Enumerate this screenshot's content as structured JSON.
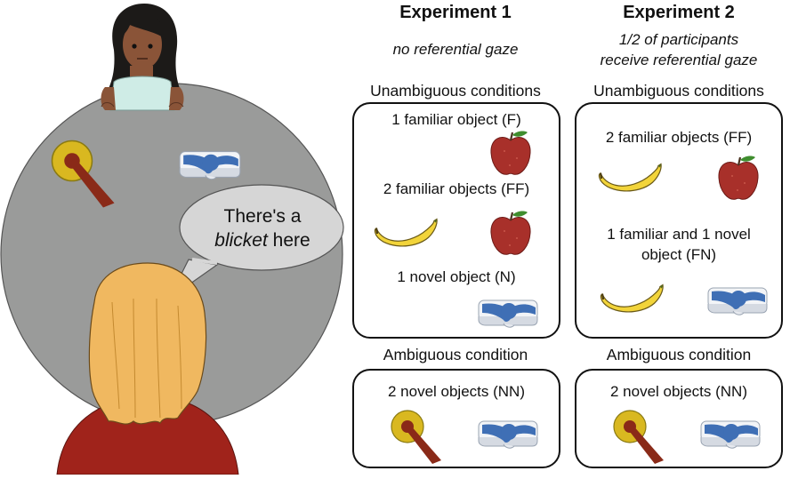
{
  "scene": {
    "speech": {
      "line1": "There's a",
      "word": "blicket",
      "after": " here"
    }
  },
  "experiments": [
    {
      "title": "Experiment 1",
      "subtitle_line1": "no referential gaze",
      "subtitle_line2": "",
      "unambiguous_heading": "Unambiguous conditions",
      "conditions": [
        "1 familiar object (F)",
        "2 familiar objects (FF)",
        "1 novel object (N)"
      ],
      "ambiguous_heading": "Ambiguous condition",
      "ambiguous_condition": "2 novel objects (NN)"
    },
    {
      "title": "Experiment 2",
      "subtitle_line1": "1/2 of participants",
      "subtitle_line2": "receive referential gaze",
      "unambiguous_heading": "Unambiguous conditions",
      "conditions": [
        "2 familiar objects (FF)",
        "1 familiar and 1 novel",
        "object (FN)"
      ],
      "ambiguous_heading": "Ambiguous condition",
      "ambiguous_condition": "2 novel objects (NN)"
    }
  ],
  "colors": {
    "table": "#9a9b9a",
    "bubble": "#d6d6d6",
    "apple": "#a8302a",
    "banana": "#f2d43a",
    "novel_blue": "#3f6fb5",
    "novel_yellow": "#d9b820",
    "novel_red": "#8a2a18",
    "hair_child": "#f0b860",
    "shirt_child": "#a0231b"
  }
}
